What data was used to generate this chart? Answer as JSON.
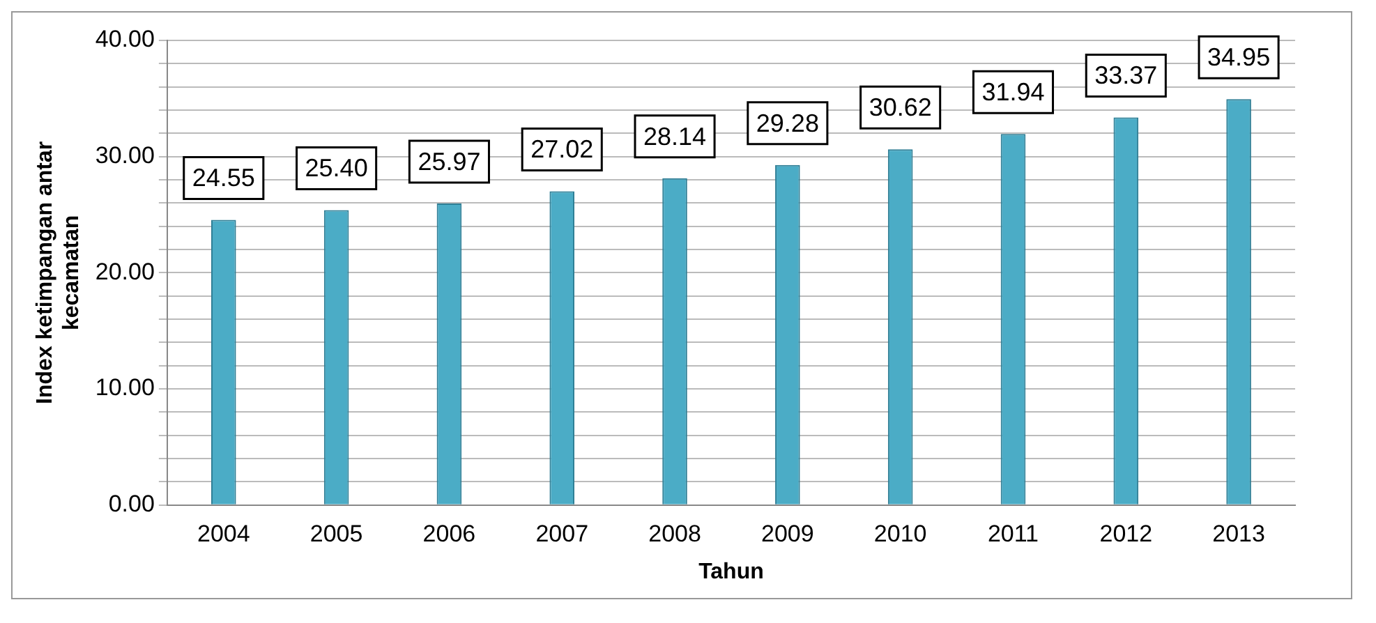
{
  "chart_data": {
    "type": "bar",
    "xlabel": "Tahun",
    "ylabel": "Index ketimpangan antar kecamatan",
    "categories": [
      "2004",
      "2005",
      "2006",
      "2007",
      "2008",
      "2009",
      "2010",
      "2011",
      "2012",
      "2013"
    ],
    "values": [
      24.55,
      25.4,
      25.97,
      27.02,
      28.14,
      29.28,
      30.62,
      31.94,
      33.37,
      34.95
    ],
    "value_labels": [
      "24.55",
      "25.40",
      "25.97",
      "27.02",
      "28.14",
      "29.28",
      "30.62",
      "31.94",
      "33.37",
      "34.95"
    ],
    "color": "#4bacc6",
    "ylim": [
      0,
      40
    ],
    "yticks": [
      {
        "value": 0,
        "label": "0.00"
      },
      {
        "value": 2,
        "label": null
      },
      {
        "value": 4,
        "label": null
      },
      {
        "value": 6,
        "label": null
      },
      {
        "value": 8,
        "label": null
      },
      {
        "value": 10,
        "label": "10.00"
      },
      {
        "value": 12,
        "label": null
      },
      {
        "value": 14,
        "label": null
      },
      {
        "value": 16,
        "label": null
      },
      {
        "value": 18,
        "label": null
      },
      {
        "value": 20,
        "label": "20.00"
      },
      {
        "value": 22,
        "label": null
      },
      {
        "value": 24,
        "label": null
      },
      {
        "value": 26,
        "label": null
      },
      {
        "value": 28,
        "label": null
      },
      {
        "value": 30,
        "label": "30.00"
      },
      {
        "value": 32,
        "label": null
      },
      {
        "value": 34,
        "label": null
      },
      {
        "value": 36,
        "label": null
      },
      {
        "value": 38,
        "label": null
      },
      {
        "value": 40,
        "label": "40.00"
      }
    ],
    "grid": "y",
    "legend": false
  }
}
